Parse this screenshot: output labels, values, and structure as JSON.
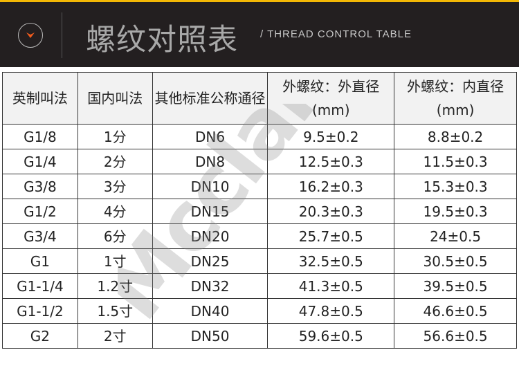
{
  "header": {
    "title": "螺纹对照表",
    "subtitle": "/ THREAD CONTROL TABLE",
    "icon": "chevron-down-circle-icon",
    "accent": "#f25c1d",
    "top_line_color": "#f2b705"
  },
  "watermark": "Mcclair",
  "table": {
    "columns": [
      "英制叫法",
      "国内叫法",
      "其他标准公称通径",
      "外螺纹：外直径(mm)",
      "外螺纹：内直径(mm)"
    ],
    "rows": [
      [
        "G1/8",
        "1分",
        "DN6",
        "9.5±0.2",
        "8.8±0.2"
      ],
      [
        "G1/4",
        "2分",
        "DN8",
        "12.5±0.3",
        "11.5±0.3"
      ],
      [
        "G3/8",
        "3分",
        "DN10",
        "16.2±0.3",
        "15.3±0.3"
      ],
      [
        "G1/2",
        "4分",
        "DN15",
        "20.3±0.3",
        "19.5±0.3"
      ],
      [
        "G3/4",
        "6分",
        "DN20",
        "25.7±0.5",
        "24±0.5"
      ],
      [
        "G1",
        "1寸",
        "DN25",
        "32.5±0.5",
        "30.5±0.5"
      ],
      [
        "G1-1/4",
        "1.2寸",
        "DN32",
        "41.3±0.5",
        "39.5±0.5"
      ],
      [
        "G1-1/2",
        "1.5寸",
        "DN40",
        "47.8±0.5",
        "46.6±0.5"
      ],
      [
        "G2",
        "2寸",
        "DN50",
        "59.6±0.5",
        "56.6±0.5"
      ]
    ]
  }
}
